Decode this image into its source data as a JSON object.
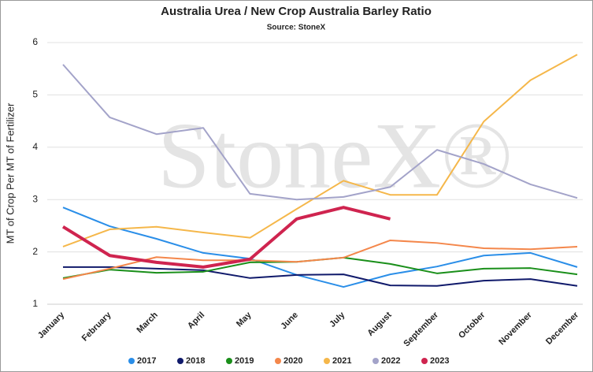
{
  "chart_data": {
    "type": "line",
    "title": "Australia Urea / New Crop Australia Barley Ratio",
    "subtitle": "Source: StoneX",
    "watermark": "StoneX®",
    "y_label": "MT of Crop Per MT of Fertilizer",
    "categories": [
      "January",
      "February",
      "March",
      "April",
      "May",
      "June",
      "July",
      "August",
      "September",
      "October",
      "November",
      "December"
    ],
    "ylim": [
      1,
      6
    ],
    "yticks": [
      1,
      2,
      3,
      4,
      5,
      6
    ],
    "grid": true,
    "legend": "bottom",
    "series": [
      {
        "name": "2017",
        "color": "#2a8ee8",
        "values": [
          2.85,
          2.49,
          2.25,
          1.98,
          1.87,
          1.56,
          1.33,
          1.57,
          1.72,
          1.93,
          1.98,
          1.71
        ]
      },
      {
        "name": "2018",
        "color": "#101a6b",
        "values": [
          1.71,
          1.71,
          1.68,
          1.65,
          1.5,
          1.56,
          1.57,
          1.36,
          1.35,
          1.45,
          1.48,
          1.35
        ]
      },
      {
        "name": "2019",
        "color": "#1a8f1a",
        "values": [
          1.5,
          1.66,
          1.6,
          1.62,
          1.8,
          1.81,
          1.89,
          1.77,
          1.59,
          1.68,
          1.69,
          1.57
        ]
      },
      {
        "name": "2020",
        "color": "#f4874b",
        "values": [
          1.48,
          1.68,
          1.9,
          1.84,
          1.84,
          1.81,
          1.89,
          2.22,
          2.17,
          2.07,
          2.05,
          2.1
        ]
      },
      {
        "name": "2021",
        "color": "#f5b74a",
        "values": [
          2.1,
          2.43,
          2.48,
          2.37,
          2.27,
          2.82,
          3.36,
          3.09,
          3.09,
          4.49,
          5.28,
          5.77
        ]
      },
      {
        "name": "2022",
        "color": "#a3a3c9",
        "values": [
          5.58,
          4.57,
          4.25,
          4.37,
          3.11,
          3.0,
          3.05,
          3.24,
          3.95,
          3.68,
          3.29,
          3.03
        ]
      },
      {
        "name": "2023",
        "color": "#cf244f",
        "width": 4,
        "values": [
          2.48,
          1.93,
          1.8,
          1.71,
          1.86,
          2.63,
          2.85,
          2.63,
          null,
          null,
          null,
          null
        ]
      }
    ]
  }
}
